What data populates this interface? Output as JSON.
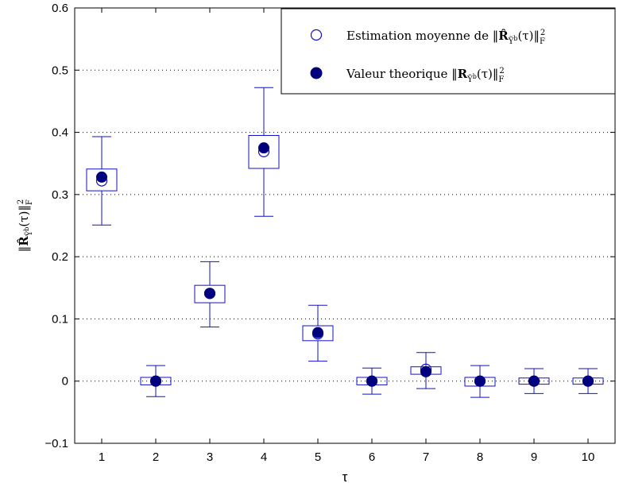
{
  "chart_data": {
    "type": "box",
    "xlabel": "τ",
    "ylabel": "‖R̂_{Ỹ^b}(τ)‖²_F",
    "xlim": [
      0.5,
      10.5
    ],
    "ylim": [
      -0.1,
      0.6
    ],
    "xticks": [
      "1",
      "2",
      "3",
      "4",
      "5",
      "6",
      "7",
      "8",
      "9",
      "10"
    ],
    "yticks": [
      "−0.1",
      "0",
      "0.1",
      "0.2",
      "0.3",
      "0.4",
      "0.5",
      "0.6"
    ],
    "ytick_values": [
      -0.1,
      0,
      0.1,
      0.2,
      0.3,
      0.4,
      0.5,
      0.6
    ],
    "grid": "horizontal-dotted",
    "legend_position": "top-right",
    "color": "#1111cc",
    "marker_color": "#00007f",
    "boxes": [
      {
        "x": 1,
        "whisker_low": 0.251,
        "q1": 0.306,
        "q3": 0.341,
        "whisker_high": 0.393
      },
      {
        "x": 2,
        "whisker_low": -0.025,
        "q1": -0.006,
        "q3": 0.006,
        "whisker_high": 0.025
      },
      {
        "x": 3,
        "whisker_low": 0.087,
        "q1": 0.126,
        "q3": 0.154,
        "whisker_high": 0.192
      },
      {
        "x": 4,
        "whisker_low": 0.265,
        "q1": 0.342,
        "q3": 0.395,
        "whisker_high": 0.472
      },
      {
        "x": 5,
        "whisker_low": 0.032,
        "q1": 0.065,
        "q3": 0.089,
        "whisker_high": 0.122
      },
      {
        "x": 6,
        "whisker_low": -0.021,
        "q1": -0.006,
        "q3": 0.006,
        "whisker_high": 0.021
      },
      {
        "x": 7,
        "whisker_low": -0.012,
        "q1": 0.011,
        "q3": 0.023,
        "whisker_high": 0.046
      },
      {
        "x": 8,
        "whisker_low": -0.026,
        "q1": -0.008,
        "q3": 0.006,
        "whisker_high": 0.025
      },
      {
        "x": 9,
        "whisker_low": -0.02,
        "q1": -0.005,
        "q3": 0.005,
        "whisker_high": 0.02
      },
      {
        "x": 10,
        "whisker_low": -0.02,
        "q1": -0.005,
        "q3": 0.005,
        "whisker_high": 0.02
      }
    ],
    "series": [
      {
        "name": "Estimation moyenne de ‖R̂_{Ỹ^b}(τ)‖²_F",
        "marker": "open-circle",
        "x": [
          1,
          2,
          3,
          4,
          5,
          6,
          7,
          8,
          9,
          10
        ],
        "values": [
          0.322,
          0.0,
          0.141,
          0.369,
          0.076,
          0.0,
          0.019,
          0.0,
          0.0,
          0.0
        ]
      },
      {
        "name": "Valeur theorique ‖R_{Ỹ^b}(τ)‖²_F",
        "marker": "filled-circle",
        "x": [
          1,
          2,
          3,
          4,
          5,
          6,
          7,
          8,
          9,
          10
        ],
        "values": [
          0.328,
          0.0,
          0.141,
          0.375,
          0.078,
          0.0,
          0.015,
          0.0,
          0.0,
          0.0
        ]
      }
    ]
  }
}
